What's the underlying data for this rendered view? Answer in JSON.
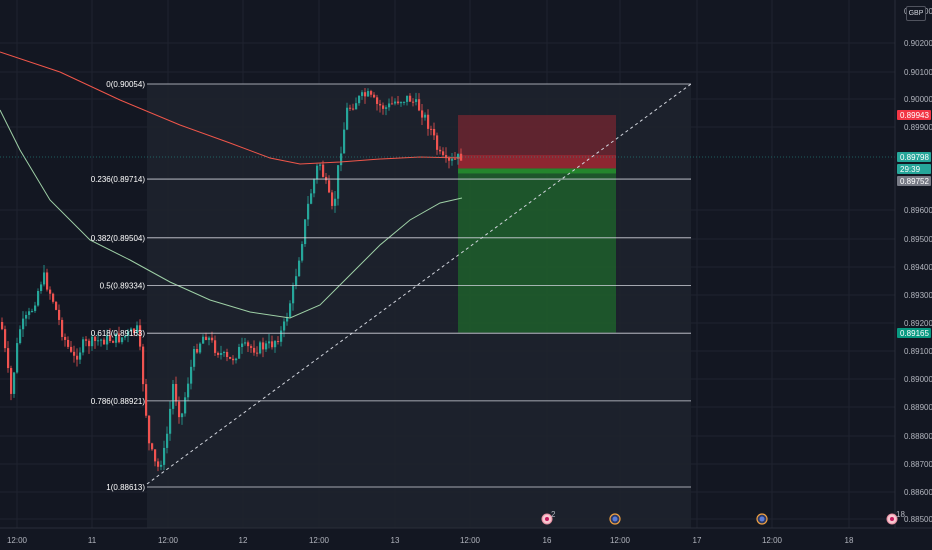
{
  "currency_label": "GBP",
  "price_axis": {
    "labels": [
      "0.90200",
      "0.90100",
      "0.90000",
      "0.89900",
      "0.89600",
      "0.89500",
      "0.89400",
      "0.89300",
      "0.89200",
      "0.89100",
      "0.89000",
      "0.88900",
      "0.88800",
      "0.88700",
      "0.88600",
      "0.88500"
    ],
    "stop_tag": "0.89943",
    "current_tag": "0.89798",
    "countdown_tag": "29:39",
    "entry_tag": "0.89752",
    "target_tag": "0.89165",
    "top_partial_label": "0.90300"
  },
  "time_axis": {
    "labels": [
      "12:00",
      "11",
      "12:00",
      "12",
      "12:00",
      "13",
      "12:00",
      "16",
      "12:00",
      "17",
      "12:00",
      "18"
    ]
  },
  "fib_levels": [
    {
      "label": "0(0.90054)",
      "price": 0.90054
    },
    {
      "label": "0.236(0.89714)",
      "price": 0.89714
    },
    {
      "label": "0.382(0.89504)",
      "price": 0.89504
    },
    {
      "label": "0.5(0.89334)",
      "price": 0.89334
    },
    {
      "label": "0.618(0.89163)",
      "price": 0.89163
    },
    {
      "label": "0.786(0.88921)",
      "price": 0.88921
    },
    {
      "label": "1(0.88613)",
      "price": 0.88613
    }
  ],
  "position": {
    "type": "short",
    "stop": 0.89943,
    "entry": 0.89752,
    "target": 0.89165
  },
  "event_markers": [
    {
      "kind": "flag",
      "badge": "2"
    },
    {
      "kind": "economic",
      "badge": ""
    },
    {
      "kind": "economic",
      "badge": ""
    },
    {
      "kind": "flag",
      "badge": "18"
    }
  ],
  "colors": {
    "background": "#131722",
    "up_candle": "#26a69a",
    "down_candle": "#ef5350",
    "ma_slow": "#f0564a",
    "ma_fast": "#9ed0a6",
    "stop_zone": "#b22833",
    "target_zone": "#1e8a2a",
    "fib_line": "#d1d4dc",
    "current_tag": "#26a69a",
    "stop_tag": "#f23645",
    "target_tag": "#089981",
    "entry_tag": "#787b86"
  }
}
